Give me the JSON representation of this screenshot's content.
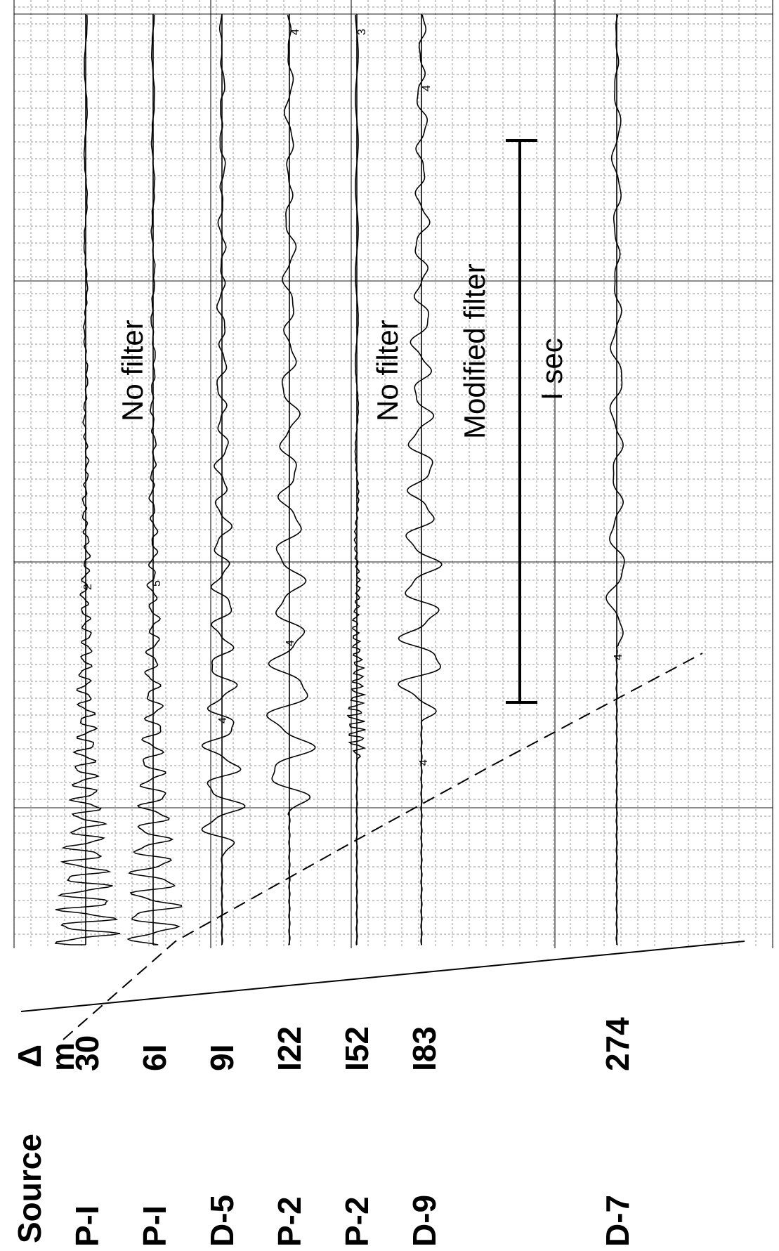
{
  "header": {
    "source": "Source",
    "delta": "Δ",
    "unit": "m"
  },
  "records": [
    {
      "source": "P-I",
      "distance": "30"
    },
    {
      "source": "P-I",
      "distance": "6I"
    },
    {
      "source": "D-5",
      "distance": "9I"
    },
    {
      "source": "P-2",
      "distance": "I22"
    },
    {
      "source": "P-2",
      "distance": "I52"
    },
    {
      "source": "D-9",
      "distance": "I83"
    },
    {
      "source": "D-7",
      "distance": "274"
    }
  ],
  "annotations": {
    "no_filter_1": "No filter",
    "no_filter_2": "No filter",
    "modified_filter": "Modified filter",
    "time_scale": "I sec"
  },
  "trace_marks": [
    "2",
    "5",
    "4",
    "4",
    "4",
    "4",
    "3",
    "4",
    "4"
  ]
}
